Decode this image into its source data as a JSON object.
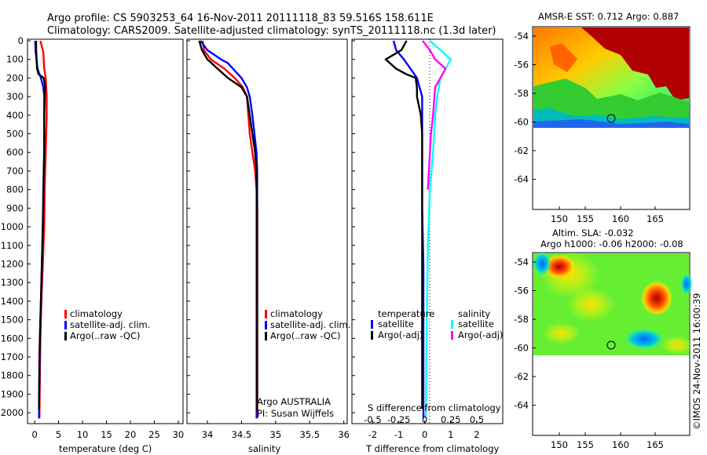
{
  "header": {
    "line1": "Argo profile: CS 5903253_64 16-Nov-2011 20111118_83 59.516S 158.611E",
    "line2": "Climatology: CARS2009. Satellite-adjusted climatology: synTS_20111118.nc (1.3d later)"
  },
  "colors": {
    "climatology": "#ff0000",
    "satellite": "#0000ff",
    "argo": "#000000",
    "sal_satellite": "#00ffff",
    "sal_argo": "#ff00ff"
  },
  "chart_data": [
    {
      "type": "line",
      "xlabel": "temperature (deg C)",
      "ylabel": "",
      "xlim": [
        -1.5,
        31
      ],
      "ylim": [
        0,
        2050
      ],
      "y_reversed": true,
      "xticks": [
        "0",
        "5",
        "10",
        "15",
        "20",
        "25",
        "30"
      ],
      "yticks": [
        "0",
        "100",
        "200",
        "300",
        "400",
        "500",
        "600",
        "700",
        "800",
        "900",
        "1000",
        "1100",
        "1200",
        "1300",
        "1400",
        "1500",
        "1600",
        "1700",
        "1800",
        "1900",
        "2000"
      ],
      "legend": [
        "climatology",
        "satellite-adj. clim.",
        "Argo(..raw -QC)"
      ],
      "legend_position": "bottom-right",
      "series": [
        {
          "name": "climatology",
          "color": "#ff0000",
          "x": [
            1.2,
            1.8,
            2.0,
            2.3,
            2.4,
            2.5,
            2.5,
            2.4,
            2.3,
            2.2,
            2.1,
            2.0,
            1.7,
            1.4,
            1.2,
            1.1,
            1.0
          ],
          "y": [
            0,
            60,
            150,
            200,
            250,
            300,
            400,
            500,
            600,
            700,
            800,
            1000,
            1200,
            1400,
            1600,
            1800,
            2030
          ]
        },
        {
          "name": "satellite-adj. clim.",
          "color": "#0000ff",
          "x": [
            0.1,
            0.2,
            0.6,
            1.3,
            1.8,
            2.0,
            2.0,
            2.0,
            2.0,
            1.9,
            1.8,
            1.7,
            1.5,
            1.3,
            1.1,
            1.0,
            0.9
          ],
          "y": [
            0,
            60,
            150,
            200,
            250,
            300,
            400,
            500,
            600,
            700,
            800,
            1000,
            1200,
            1400,
            1600,
            1800,
            2030
          ]
        },
        {
          "name": "Argo(..raw -QC)",
          "color": "#000000",
          "x": [
            0.3,
            0.3,
            0.4,
            0.5,
            0.8,
            1.9,
            2.2,
            2.1,
            2.0,
            2.0,
            2.0,
            1.9,
            1.8,
            1.6,
            1.4,
            1.2,
            1.0,
            0.9
          ],
          "y": [
            0,
            50,
            100,
            150,
            180,
            200,
            250,
            300,
            400,
            500,
            600,
            700,
            900,
            1100,
            1300,
            1500,
            1700,
            1980
          ]
        }
      ]
    },
    {
      "type": "line",
      "xlabel": "salinity",
      "ylabel": "",
      "xlim": [
        33.7,
        36.05
      ],
      "ylim": [
        0,
        2050
      ],
      "y_reversed": true,
      "xticks": [
        "34",
        "34.5",
        "35",
        "35.5",
        "36"
      ],
      "legend": [
        "climatology",
        "satellite-adj. clim.",
        "Argo(..raw -QC)"
      ],
      "legend_position": "bottom-right",
      "annotation": [
        "Argo AUSTRALIA",
        "PI: Susan Wijffels"
      ],
      "series": [
        {
          "name": "climatology",
          "color": "#ff0000",
          "x": [
            33.93,
            33.95,
            34.05,
            34.25,
            34.4,
            34.52,
            34.58,
            34.6,
            34.62,
            34.66,
            34.7,
            34.72,
            34.72,
            34.72,
            34.72
          ],
          "y": [
            0,
            50,
            100,
            150,
            200,
            250,
            300,
            400,
            500,
            600,
            700,
            800,
            1000,
            1500,
            2030
          ]
        },
        {
          "name": "satellite-adj. clim.",
          "color": "#0000ff",
          "x": [
            33.9,
            34.0,
            34.2,
            34.3,
            34.5,
            34.58,
            34.62,
            34.66,
            34.69,
            34.72,
            34.73,
            34.73,
            34.73,
            34.73
          ],
          "y": [
            0,
            50,
            100,
            120,
            200,
            250,
            300,
            400,
            500,
            600,
            700,
            900,
            1500,
            2030
          ]
        },
        {
          "name": "Argo(..raw -QC)",
          "color": "#000000",
          "x": [
            33.88,
            33.92,
            34.0,
            34.15,
            34.3,
            34.5,
            34.58,
            34.62,
            34.66,
            34.7,
            34.72,
            34.73,
            34.73,
            34.73
          ],
          "y": [
            0,
            50,
            100,
            150,
            200,
            250,
            300,
            400,
            500,
            600,
            700,
            900,
            1500,
            1990
          ]
        }
      ]
    },
    {
      "type": "line",
      "xlabel": "T difference from climatology",
      "x2label": "S difference from climatology",
      "ylabel": "",
      "xlim": [
        -2.8,
        3.0
      ],
      "x2lim": [
        -0.7,
        0.75
      ],
      "ylim": [
        0,
        2050
      ],
      "y_reversed": true,
      "xticks": [
        "-2",
        "-1",
        "0",
        "1",
        "2"
      ],
      "x2ticks": [
        "-0.5",
        "-0.25",
        "0",
        "0.25",
        "0.5"
      ],
      "legend": [
        "temperature",
        "satellite",
        "Argo(-adj)",
        "salinity",
        "satellite",
        "Argo(-adj)"
      ],
      "series": [
        {
          "name": "satellite",
          "group": "temperature",
          "color": "#0000ff",
          "x": [
            -1.2,
            -1.1,
            -0.8,
            -0.55,
            -0.3,
            -0.2,
            -0.1,
            -0.1,
            -0.1,
            -0.1,
            -0.1,
            -0.05,
            -0.05,
            -0.05
          ],
          "y": [
            0,
            50,
            100,
            150,
            200,
            250,
            300,
            400,
            500,
            700,
            900,
            1200,
            1600,
            2030
          ]
        },
        {
          "name": "Argo(-adj)",
          "group": "temperature",
          "color": "#000000",
          "x": [
            -0.7,
            -0.9,
            -1.5,
            -1.1,
            -0.7,
            -0.35,
            -0.3,
            -0.3,
            -0.15,
            -0.1,
            -0.1,
            -0.1,
            -0.1,
            -0.1
          ],
          "y": [
            0,
            50,
            100,
            150,
            180,
            200,
            250,
            300,
            400,
            500,
            700,
            1000,
            1500,
            1980
          ]
        },
        {
          "name": "satellite",
          "group": "salinity",
          "color": "#00ffff",
          "x": [
            0.05,
            0.15,
            0.25,
            0.2,
            0.15,
            0.12,
            0.1,
            0.08,
            0.05,
            0.03,
            0.02,
            0.01
          ],
          "y": [
            0,
            50,
            100,
            150,
            200,
            300,
            400,
            600,
            800,
            1100,
            1500,
            2030
          ]
        },
        {
          "name": "Argo(-adj)",
          "group": "salinity",
          "color": "#ff00ff",
          "x": [
            -0.02,
            0.05,
            0.1,
            0.2,
            0.15,
            0.1,
            0.08,
            0.06,
            0.05,
            0.04,
            0.03
          ],
          "y": [
            0,
            50,
            100,
            150,
            200,
            250,
            400,
            500,
            600,
            700,
            800
          ]
        }
      ]
    },
    {
      "type": "heatmap",
      "title": "AMSR-E SST: 0.712 Argo: 0.887",
      "xticks": [
        "150",
        "155",
        "160",
        "165"
      ],
      "yticks": [
        "-54",
        "-56",
        "-58",
        "-60",
        "-62",
        "-64"
      ],
      "marker": {
        "lon": 158.611,
        "lat": -59.516
      }
    },
    {
      "type": "heatmap",
      "title": "Altim. SLA: -0.032",
      "subtitle": "Argo h1000: -0.06 h2000: -0.08",
      "xticks": [
        "150",
        "155",
        "160",
        "165"
      ],
      "yticks": [
        "-54",
        "-56",
        "-58",
        "-60",
        "-62",
        "-64"
      ],
      "marker": {
        "lon": 158.611,
        "lat": -59.516
      }
    }
  ],
  "watermark": "©IMOS 24-Nov-2011 16:00:39"
}
